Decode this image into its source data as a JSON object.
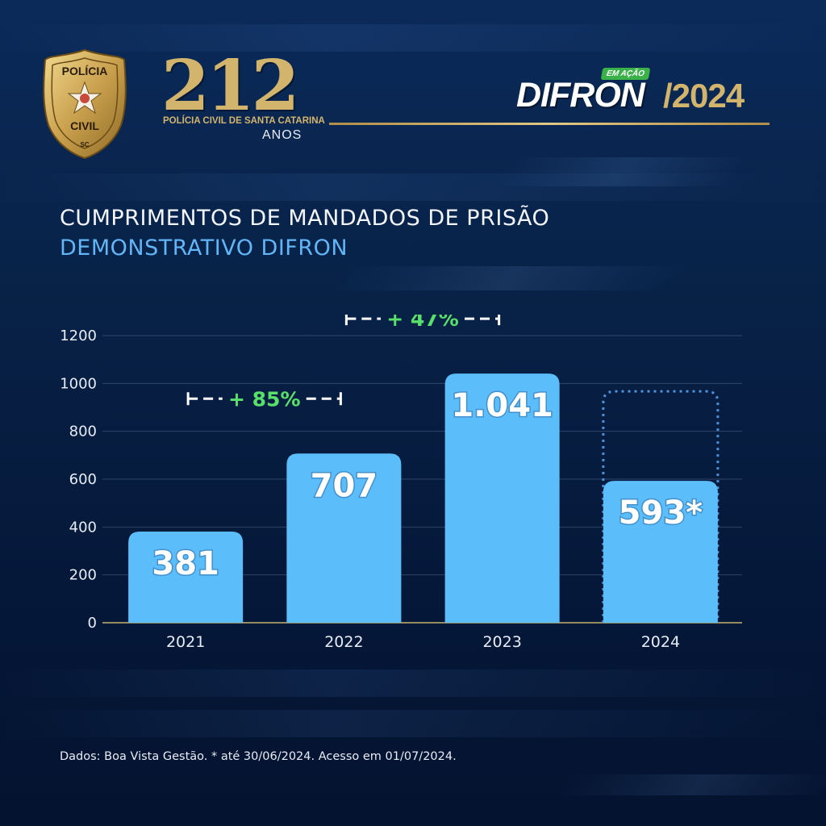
{
  "header": {
    "badge_top": "POLÍCIA",
    "badge_bottom": "CIVIL",
    "badge_state": "SC",
    "anniversary_number": "212",
    "anniversary_org": "POLÍCIA CIVIL DE SANTA CATARINA",
    "anniversary_word": "ANOS",
    "brand_tag": "EM AÇÃO",
    "brand_name": "DIFRON",
    "brand_year": "/2024"
  },
  "colors": {
    "bar": "#5cbdfb",
    "gold": "#d3b46d",
    "accent_green": "#58e06a",
    "subtitle": "#62b6f7"
  },
  "chart_data": {
    "type": "bar",
    "title": "CUMPRIMENTOS DE MANDADOS DE PRISÃO",
    "subtitle": "DEMONSTRATIVO DIFRON",
    "categories": [
      "2021",
      "2022",
      "2023",
      "2024"
    ],
    "values": [
      381,
      707,
      1041,
      593
    ],
    "value_labels": [
      "381",
      "707",
      "1.041",
      "593*"
    ],
    "ylim": [
      0,
      1200
    ],
    "yticks": [
      0,
      200,
      400,
      600,
      800,
      1000,
      1200
    ],
    "grid": true,
    "annotations": [
      {
        "from": "2021",
        "to": "2022",
        "text": "+ 85%"
      },
      {
        "from": "2022",
        "to": "2023",
        "text": "+ 47%"
      }
    ],
    "partial_year": "2024"
  },
  "footer": {
    "source": "Dados: Boa Vista Gestão. * até 30/06/2024. Acesso em 01/07/2024."
  }
}
